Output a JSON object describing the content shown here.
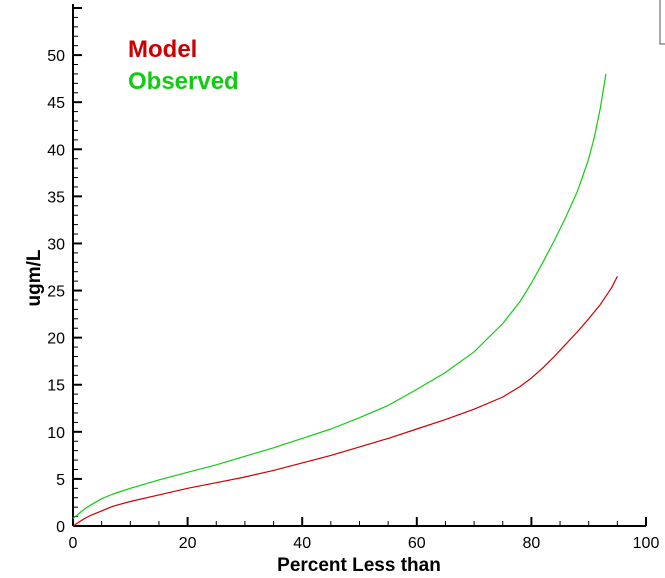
{
  "chart_data": {
    "type": "line",
    "title": "",
    "xlabel": "Percent Less than",
    "ylabel": "ugm/L",
    "xlim": [
      0,
      100
    ],
    "ylim": [
      0,
      55
    ],
    "x_ticks": [
      0,
      20,
      40,
      60,
      80,
      100
    ],
    "y_ticks": [
      0,
      5,
      10,
      15,
      20,
      25,
      30,
      35,
      40,
      45,
      50
    ],
    "grid": false,
    "legend_position": "top-left",
    "series": [
      {
        "name": "Model",
        "color": "#cc0000",
        "x": [
          0,
          1,
          2,
          3,
          5,
          7,
          10,
          15,
          20,
          25,
          30,
          35,
          40,
          45,
          50,
          55,
          60,
          65,
          70,
          75,
          78,
          80,
          82,
          84,
          86,
          88,
          90,
          92,
          94,
          95
        ],
        "y": [
          0,
          0.4,
          0.8,
          1.1,
          1.6,
          2.1,
          2.6,
          3.3,
          4.0,
          4.6,
          5.2,
          5.9,
          6.7,
          7.5,
          8.4,
          9.3,
          10.3,
          11.3,
          12.4,
          13.7,
          14.8,
          15.7,
          16.8,
          18.0,
          19.3,
          20.6,
          22.0,
          23.5,
          25.3,
          26.5
        ]
      },
      {
        "name": "Observed",
        "color": "#11cc11",
        "x": [
          0,
          1,
          2,
          3,
          5,
          7,
          10,
          15,
          20,
          25,
          30,
          35,
          40,
          45,
          50,
          55,
          60,
          65,
          70,
          75,
          78,
          80,
          82,
          84,
          86,
          88,
          89,
          90,
          91,
          92,
          93
        ],
        "y": [
          0.8,
          1.3,
          1.8,
          2.2,
          2.9,
          3.4,
          4.0,
          4.9,
          5.7,
          6.5,
          7.4,
          8.3,
          9.3,
          10.3,
          11.5,
          12.8,
          14.5,
          16.3,
          18.5,
          21.5,
          23.8,
          25.8,
          28.0,
          30.3,
          32.8,
          35.5,
          37.2,
          39.0,
          41.3,
          44.3,
          48.0
        ]
      }
    ]
  }
}
